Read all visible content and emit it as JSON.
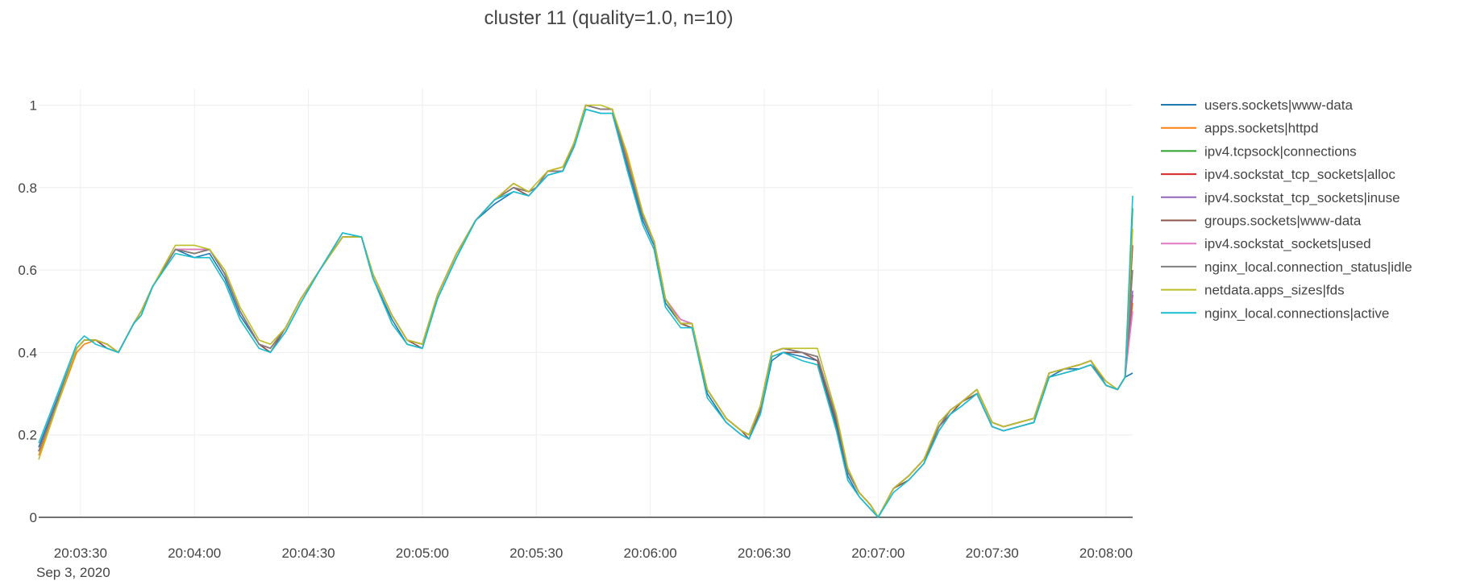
{
  "chart_data": {
    "type": "line",
    "title": "cluster 11 (quality=1.0, n=10)",
    "xlabel": "",
    "ylabel": "",
    "x_date_label": "Sep 3, 2020",
    "x_range": [
      "20:03:19",
      "20:08:07"
    ],
    "x_ticks": [
      "20:03:30",
      "20:04:00",
      "20:04:30",
      "20:05:00",
      "20:05:30",
      "20:06:00",
      "20:06:30",
      "20:07:00",
      "20:07:30",
      "20:08:00"
    ],
    "ylim": [
      0,
      1.04
    ],
    "y_ticks": [
      0,
      0.2,
      0.4,
      0.6,
      0.8,
      1
    ],
    "y_tick_labels": [
      "0",
      "0.2",
      "0.4",
      "0.6",
      "0.8",
      "1"
    ],
    "grid": true,
    "legend_position": "right",
    "x": [
      "20:03:19",
      "20:03:29",
      "20:03:31",
      "20:03:34",
      "20:03:37",
      "20:03:40",
      "20:03:44",
      "20:03:46",
      "20:03:49",
      "20:03:55",
      "20:04:00",
      "20:04:04",
      "20:04:08",
      "20:04:12",
      "20:04:17",
      "20:04:20",
      "20:04:24",
      "20:04:28",
      "20:04:33",
      "20:04:39",
      "20:04:44",
      "20:04:47",
      "20:04:52",
      "20:04:56",
      "20:05:00",
      "20:05:04",
      "20:05:09",
      "20:05:14",
      "20:05:19",
      "20:05:24",
      "20:05:28",
      "20:05:30",
      "20:05:33",
      "20:05:37",
      "20:05:40",
      "20:05:43",
      "20:05:47",
      "20:05:50",
      "20:05:54",
      "20:05:58",
      "20:06:01",
      "20:06:04",
      "20:06:08",
      "20:06:11",
      "20:06:15",
      "20:06:20",
      "20:06:24",
      "20:06:26",
      "20:06:29",
      "20:06:32",
      "20:06:35",
      "20:06:40",
      "20:06:44",
      "20:06:49",
      "20:06:52",
      "20:06:55",
      "20:06:58",
      "20:07:00",
      "20:07:04",
      "20:07:08",
      "20:07:12",
      "20:07:16",
      "20:07:19",
      "20:07:22",
      "20:07:26",
      "20:07:30",
      "20:07:33",
      "20:07:37",
      "20:07:41",
      "20:07:45",
      "20:07:49",
      "20:07:53",
      "20:07:56",
      "20:08:00",
      "20:08:03",
      "20:08:05",
      "20:08:07"
    ],
    "series": [
      {
        "name": "users.sockets|www-data",
        "color": "#1f77b4",
        "values": [
          0.17,
          0.41,
          0.43,
          0.43,
          0.41,
          0.4,
          0.47,
          0.49,
          0.56,
          0.65,
          0.63,
          0.64,
          0.58,
          0.49,
          0.42,
          0.4,
          0.45,
          0.52,
          0.6,
          0.69,
          0.68,
          0.58,
          0.48,
          0.42,
          0.41,
          0.53,
          0.63,
          0.72,
          0.76,
          0.79,
          0.78,
          0.8,
          0.83,
          0.84,
          0.9,
          0.99,
          0.98,
          0.98,
          0.85,
          0.72,
          0.66,
          0.52,
          0.47,
          0.46,
          0.3,
          0.23,
          0.2,
          0.19,
          0.25,
          0.38,
          0.4,
          0.39,
          0.38,
          0.22,
          0.1,
          0.05,
          0.02,
          0.0,
          0.07,
          0.09,
          0.13,
          0.21,
          0.25,
          0.27,
          0.3,
          0.22,
          0.21,
          0.22,
          0.23,
          0.34,
          0.36,
          0.36,
          0.37,
          0.33,
          0.31,
          0.34,
          0.35
        ]
      },
      {
        "name": "apps.sockets|httpd",
        "color": "#ff7f0e",
        "values": [
          0.15,
          0.4,
          0.42,
          0.43,
          0.42,
          0.4,
          0.47,
          0.5,
          0.56,
          0.65,
          0.65,
          0.65,
          0.59,
          0.5,
          0.42,
          0.41,
          0.46,
          0.53,
          0.6,
          0.68,
          0.68,
          0.59,
          0.49,
          0.43,
          0.42,
          0.54,
          0.64,
          0.72,
          0.77,
          0.81,
          0.79,
          0.8,
          0.84,
          0.85,
          0.91,
          1.0,
          0.99,
          0.99,
          0.87,
          0.73,
          0.67,
          0.53,
          0.47,
          0.47,
          0.31,
          0.24,
          0.21,
          0.2,
          0.27,
          0.4,
          0.41,
          0.4,
          0.39,
          0.24,
          0.11,
          0.06,
          0.03,
          0.0,
          0.07,
          0.1,
          0.14,
          0.22,
          0.26,
          0.28,
          0.31,
          0.23,
          0.22,
          0.23,
          0.24,
          0.35,
          0.36,
          0.37,
          0.38,
          0.32,
          0.31,
          0.34,
          0.52
        ]
      },
      {
        "name": "ipv4.tcpsock|connections",
        "color": "#2ca02c",
        "values": [
          0.16,
          0.41,
          0.43,
          0.43,
          0.42,
          0.4,
          0.47,
          0.5,
          0.56,
          0.65,
          0.64,
          0.65,
          0.59,
          0.5,
          0.42,
          0.41,
          0.46,
          0.53,
          0.6,
          0.68,
          0.68,
          0.59,
          0.49,
          0.43,
          0.42,
          0.54,
          0.64,
          0.72,
          0.77,
          0.8,
          0.79,
          0.8,
          0.84,
          0.84,
          0.91,
          1.0,
          0.99,
          0.99,
          0.86,
          0.73,
          0.67,
          0.53,
          0.47,
          0.47,
          0.31,
          0.24,
          0.21,
          0.2,
          0.27,
          0.4,
          0.41,
          0.4,
          0.39,
          0.24,
          0.11,
          0.06,
          0.03,
          0.0,
          0.07,
          0.1,
          0.14,
          0.22,
          0.26,
          0.28,
          0.31,
          0.23,
          0.22,
          0.23,
          0.24,
          0.35,
          0.36,
          0.37,
          0.38,
          0.32,
          0.31,
          0.34,
          0.75
        ]
      },
      {
        "name": "ipv4.sockstat_tcp_sockets|alloc",
        "color": "#d62728",
        "values": [
          0.16,
          0.41,
          0.43,
          0.43,
          0.42,
          0.4,
          0.47,
          0.5,
          0.56,
          0.65,
          0.64,
          0.65,
          0.59,
          0.5,
          0.42,
          0.41,
          0.46,
          0.53,
          0.6,
          0.68,
          0.68,
          0.59,
          0.49,
          0.43,
          0.42,
          0.54,
          0.64,
          0.72,
          0.77,
          0.8,
          0.79,
          0.8,
          0.84,
          0.84,
          0.91,
          1.0,
          0.99,
          0.99,
          0.86,
          0.73,
          0.67,
          0.53,
          0.47,
          0.47,
          0.31,
          0.24,
          0.21,
          0.2,
          0.27,
          0.4,
          0.41,
          0.4,
          0.39,
          0.24,
          0.11,
          0.06,
          0.03,
          0.0,
          0.07,
          0.1,
          0.14,
          0.22,
          0.26,
          0.28,
          0.31,
          0.23,
          0.22,
          0.23,
          0.24,
          0.35,
          0.36,
          0.37,
          0.38,
          0.32,
          0.31,
          0.34,
          0.54
        ]
      },
      {
        "name": "ipv4.sockstat_tcp_sockets|inuse",
        "color": "#9467bd",
        "values": [
          0.16,
          0.41,
          0.43,
          0.43,
          0.42,
          0.4,
          0.47,
          0.5,
          0.56,
          0.65,
          0.65,
          0.65,
          0.59,
          0.5,
          0.42,
          0.41,
          0.46,
          0.53,
          0.6,
          0.68,
          0.68,
          0.59,
          0.49,
          0.43,
          0.42,
          0.54,
          0.64,
          0.72,
          0.77,
          0.81,
          0.79,
          0.8,
          0.84,
          0.84,
          0.91,
          1.0,
          0.99,
          0.99,
          0.86,
          0.73,
          0.67,
          0.53,
          0.48,
          0.47,
          0.31,
          0.24,
          0.21,
          0.2,
          0.27,
          0.4,
          0.41,
          0.4,
          0.39,
          0.24,
          0.11,
          0.06,
          0.03,
          0.0,
          0.07,
          0.1,
          0.14,
          0.22,
          0.26,
          0.28,
          0.31,
          0.23,
          0.22,
          0.23,
          0.24,
          0.35,
          0.36,
          0.37,
          0.38,
          0.32,
          0.31,
          0.34,
          0.55
        ]
      },
      {
        "name": "groups.sockets|www-data",
        "color": "#8c564b",
        "values": [
          0.16,
          0.41,
          0.43,
          0.43,
          0.41,
          0.4,
          0.47,
          0.5,
          0.56,
          0.65,
          0.64,
          0.65,
          0.59,
          0.5,
          0.42,
          0.4,
          0.46,
          0.53,
          0.6,
          0.68,
          0.68,
          0.59,
          0.49,
          0.43,
          0.41,
          0.54,
          0.64,
          0.72,
          0.77,
          0.8,
          0.78,
          0.8,
          0.84,
          0.84,
          0.91,
          1.0,
          0.99,
          0.99,
          0.86,
          0.73,
          0.67,
          0.53,
          0.47,
          0.46,
          0.31,
          0.24,
          0.21,
          0.19,
          0.26,
          0.39,
          0.4,
          0.4,
          0.38,
          0.23,
          0.11,
          0.06,
          0.03,
          0.0,
          0.07,
          0.09,
          0.13,
          0.22,
          0.25,
          0.28,
          0.3,
          0.22,
          0.21,
          0.22,
          0.23,
          0.34,
          0.35,
          0.36,
          0.37,
          0.32,
          0.31,
          0.34,
          0.66
        ]
      },
      {
        "name": "ipv4.sockstat_sockets|used",
        "color": "#e377c2",
        "values": [
          0.16,
          0.41,
          0.43,
          0.43,
          0.42,
          0.4,
          0.47,
          0.5,
          0.56,
          0.65,
          0.65,
          0.65,
          0.59,
          0.5,
          0.42,
          0.41,
          0.46,
          0.53,
          0.6,
          0.68,
          0.68,
          0.59,
          0.49,
          0.43,
          0.42,
          0.54,
          0.64,
          0.72,
          0.77,
          0.81,
          0.79,
          0.8,
          0.84,
          0.84,
          0.91,
          1.0,
          0.99,
          0.99,
          0.86,
          0.73,
          0.67,
          0.53,
          0.48,
          0.47,
          0.31,
          0.24,
          0.21,
          0.2,
          0.27,
          0.4,
          0.41,
          0.4,
          0.39,
          0.24,
          0.11,
          0.06,
          0.03,
          0.0,
          0.07,
          0.1,
          0.14,
          0.22,
          0.26,
          0.28,
          0.31,
          0.23,
          0.22,
          0.23,
          0.24,
          0.35,
          0.36,
          0.37,
          0.38,
          0.32,
          0.31,
          0.34,
          0.5
        ]
      },
      {
        "name": "nginx_local.connection_status|idle",
        "color": "#7f7f7f",
        "values": [
          0.16,
          0.41,
          0.43,
          0.43,
          0.42,
          0.4,
          0.47,
          0.5,
          0.56,
          0.65,
          0.64,
          0.65,
          0.59,
          0.5,
          0.42,
          0.41,
          0.46,
          0.53,
          0.6,
          0.68,
          0.68,
          0.59,
          0.49,
          0.43,
          0.42,
          0.54,
          0.64,
          0.72,
          0.77,
          0.8,
          0.79,
          0.8,
          0.84,
          0.84,
          0.91,
          1.0,
          0.99,
          0.99,
          0.86,
          0.73,
          0.67,
          0.53,
          0.47,
          0.47,
          0.31,
          0.24,
          0.21,
          0.2,
          0.27,
          0.4,
          0.41,
          0.4,
          0.39,
          0.24,
          0.11,
          0.06,
          0.03,
          0.0,
          0.07,
          0.1,
          0.14,
          0.22,
          0.26,
          0.28,
          0.31,
          0.23,
          0.22,
          0.23,
          0.24,
          0.35,
          0.36,
          0.37,
          0.38,
          0.32,
          0.31,
          0.34,
          0.6
        ]
      },
      {
        "name": "netdata.apps_sizes|fds",
        "color": "#bcbd22",
        "values": [
          0.14,
          0.41,
          0.43,
          0.43,
          0.42,
          0.4,
          0.47,
          0.5,
          0.56,
          0.66,
          0.66,
          0.65,
          0.6,
          0.51,
          0.43,
          0.42,
          0.46,
          0.53,
          0.6,
          0.68,
          0.68,
          0.59,
          0.49,
          0.43,
          0.42,
          0.54,
          0.64,
          0.72,
          0.77,
          0.81,
          0.79,
          0.81,
          0.84,
          0.85,
          0.91,
          1.0,
          1.0,
          0.99,
          0.88,
          0.74,
          0.67,
          0.53,
          0.47,
          0.47,
          0.31,
          0.24,
          0.21,
          0.2,
          0.27,
          0.4,
          0.41,
          0.41,
          0.41,
          0.25,
          0.12,
          0.06,
          0.03,
          0.0,
          0.07,
          0.1,
          0.14,
          0.23,
          0.26,
          0.28,
          0.31,
          0.23,
          0.22,
          0.23,
          0.24,
          0.35,
          0.36,
          0.37,
          0.38,
          0.33,
          0.31,
          0.34,
          0.7
        ]
      },
      {
        "name": "nginx_local.connections|active",
        "color": "#17becf",
        "values": [
          0.18,
          0.42,
          0.44,
          0.42,
          0.41,
          0.4,
          0.47,
          0.49,
          0.56,
          0.64,
          0.63,
          0.63,
          0.57,
          0.48,
          0.41,
          0.4,
          0.45,
          0.52,
          0.6,
          0.69,
          0.68,
          0.58,
          0.47,
          0.42,
          0.41,
          0.53,
          0.63,
          0.72,
          0.77,
          0.79,
          0.78,
          0.8,
          0.83,
          0.84,
          0.9,
          0.99,
          0.98,
          0.98,
          0.84,
          0.71,
          0.65,
          0.51,
          0.46,
          0.46,
          0.29,
          0.23,
          0.2,
          0.19,
          0.25,
          0.39,
          0.4,
          0.38,
          0.37,
          0.21,
          0.09,
          0.05,
          0.02,
          0.0,
          0.06,
          0.09,
          0.13,
          0.21,
          0.25,
          0.27,
          0.3,
          0.22,
          0.21,
          0.22,
          0.23,
          0.34,
          0.35,
          0.36,
          0.37,
          0.32,
          0.31,
          0.34,
          0.78
        ]
      }
    ]
  }
}
